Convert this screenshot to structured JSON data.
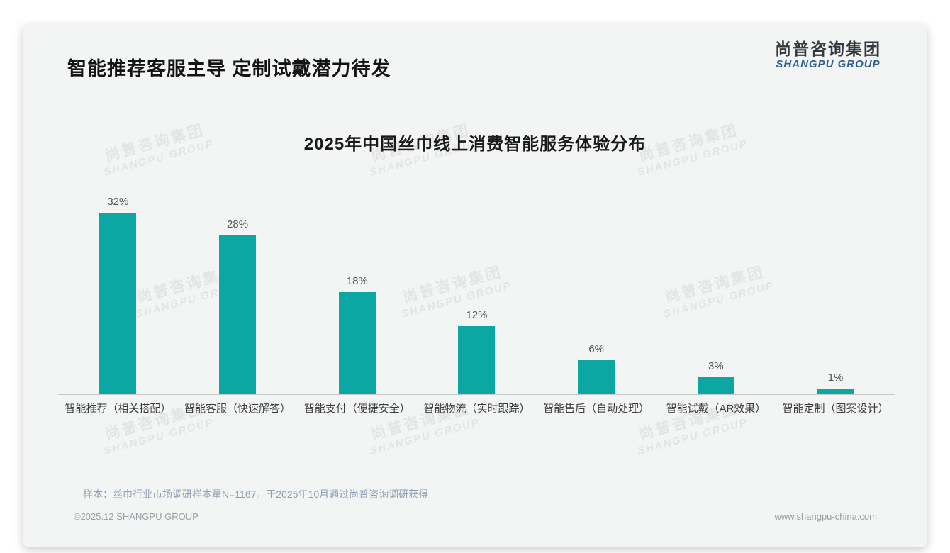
{
  "header": {
    "title": "智能推荐客服主导 定制试戴潜力待发"
  },
  "logo": {
    "cn": "尚普咨询集团",
    "en": "SHANGPU GROUP"
  },
  "watermark": {
    "cn": "尚普咨询集团",
    "en": "SHANGPU GROUP"
  },
  "chart_data": {
    "type": "bar",
    "title": "2025年中国丝巾线上消费智能服务体验分布",
    "categories": [
      "智能推荐（相关搭配）",
      "智能客服（快速解答）",
      "智能支付（便捷安全）",
      "智能物流（实时跟踪）",
      "智能售后（自动处理）",
      "智能试戴（AR效果）",
      "智能定制（图案设计）"
    ],
    "values": [
      32,
      28,
      18,
      12,
      6,
      3,
      1
    ],
    "value_labels": [
      "32%",
      "28%",
      "18%",
      "12%",
      "6%",
      "3%",
      "1%"
    ],
    "unit": "%",
    "ylim": [
      0,
      35
    ],
    "grid": false,
    "legend": "none",
    "bar_color": "#0ba8a3"
  },
  "footer": {
    "sample_note": "样本：丝巾行业市场调研样本量N=1167，于2025年10月通过尚普咨询调研获得",
    "copyright": "©2025.12 SHANGPU GROUP",
    "website": "www.shangpu-china.com"
  },
  "colors": {
    "accent_teal": "#0ba8a3",
    "logo_blue": "#2c5e94",
    "slide_bg": "#f3f4f4"
  }
}
